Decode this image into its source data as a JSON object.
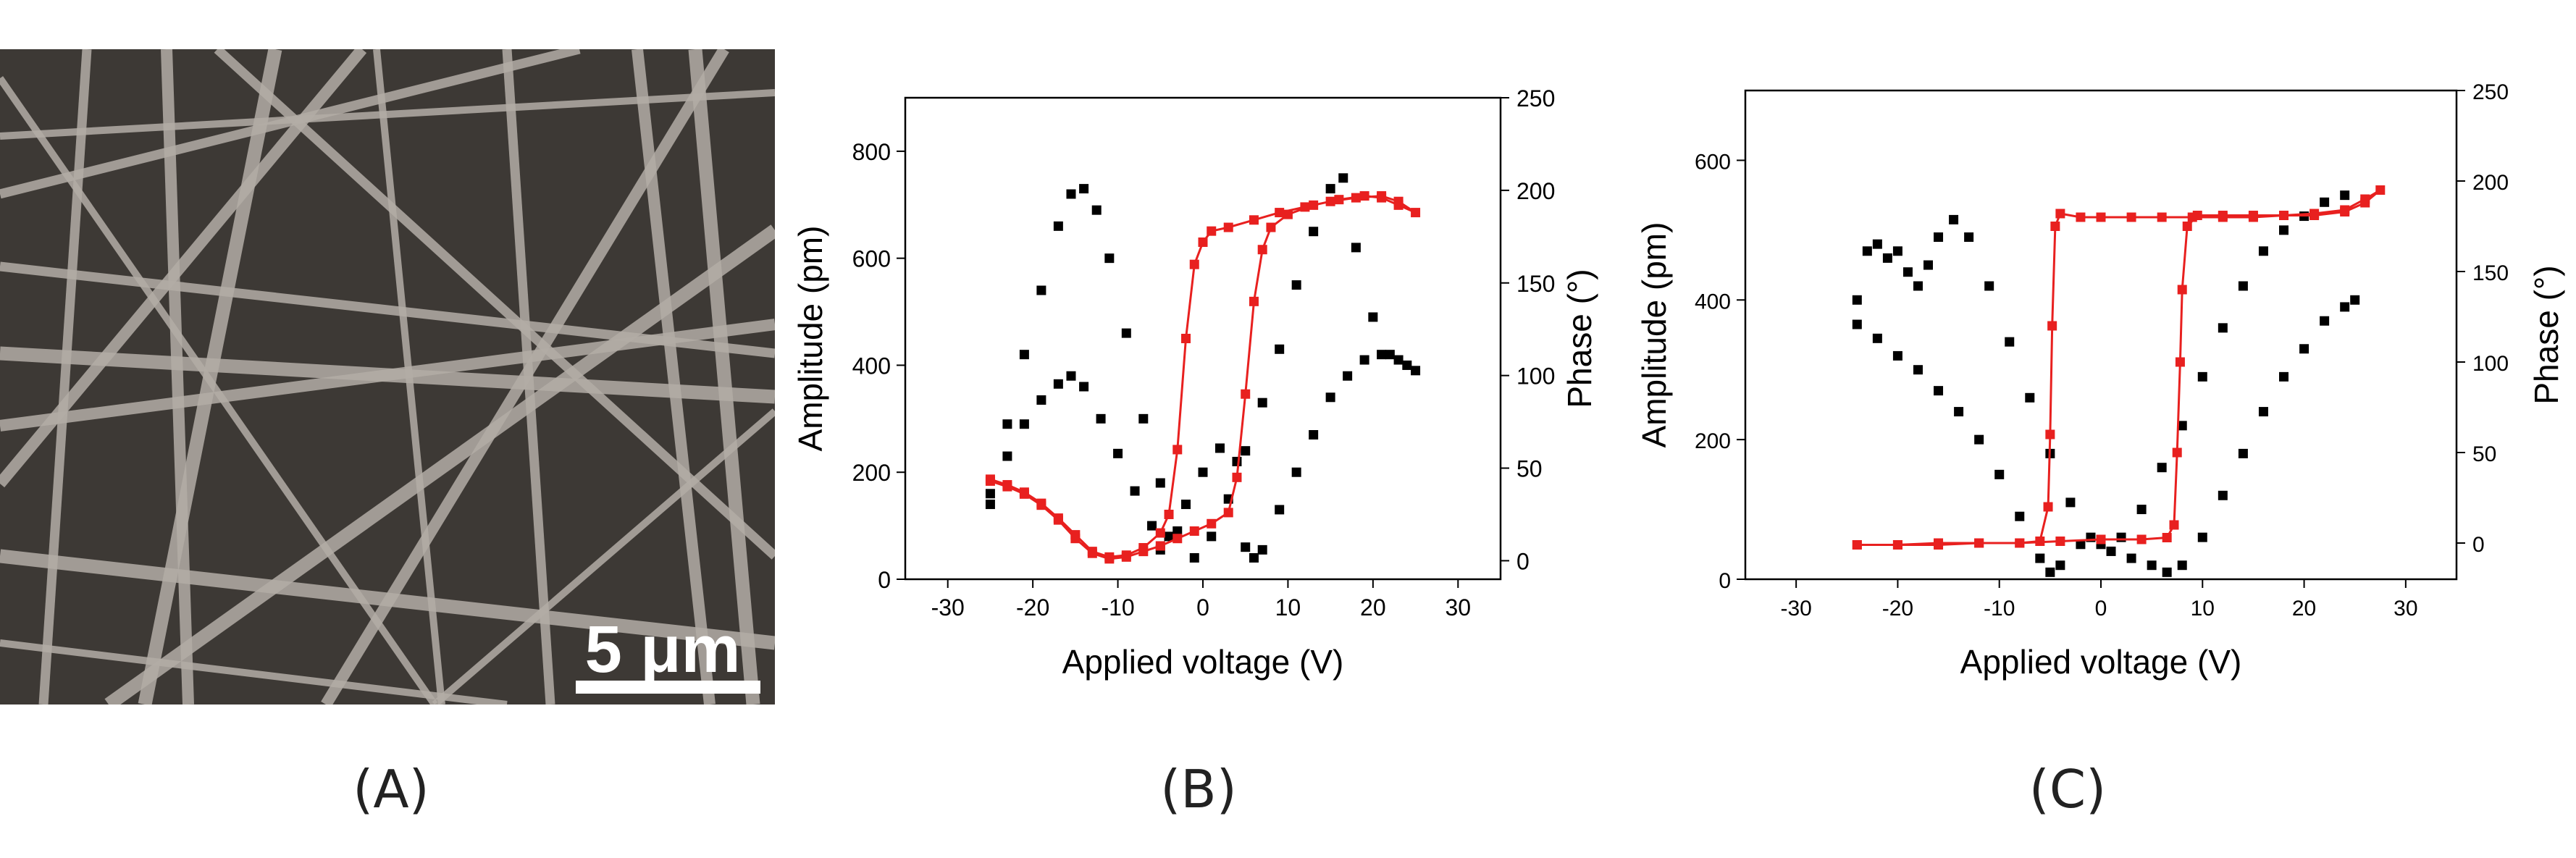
{
  "panel_labels": {
    "a": "(A)",
    "b": "(B)",
    "c": "(C)"
  },
  "sem_image": {
    "scale_bar_label": "5 μm"
  },
  "colors": {
    "amplitude": "#000000",
    "phase": "#e8201f",
    "sem_bg": "#3d3935",
    "fiber": "#aaa59f"
  },
  "chart_data": [
    {
      "type": "scatter",
      "xlabel": "Applied voltage (V)",
      "ylabel": "Amplitude (pm)",
      "y2label": "Phase (°)",
      "xlim": [
        -35,
        35
      ],
      "ylim": [
        0,
        900
      ],
      "y2lim": [
        -10,
        250
      ],
      "xticks": [
        -30,
        -20,
        -10,
        0,
        10,
        20,
        30
      ],
      "yticks": [
        0,
        200,
        400,
        600,
        800
      ],
      "y2ticks": [
        0,
        50,
        100,
        150,
        200,
        250
      ],
      "series": [
        {
          "axis": "left",
          "color": "#000000",
          "marker": "square",
          "points": [
            [
              -25,
              140
            ],
            [
              -23,
              230
            ],
            [
              -21,
              290
            ],
            [
              -19,
              335
            ],
            [
              -17,
              365
            ],
            [
              -15.5,
              380
            ],
            [
              -14,
              360
            ],
            [
              -12,
              300
            ],
            [
              -10,
              235
            ],
            [
              -8,
              165
            ],
            [
              -6,
              100
            ],
            [
              -5,
              55
            ],
            [
              -4,
              80
            ],
            [
              -2,
              140
            ],
            [
              0,
              200
            ],
            [
              2,
              245
            ],
            [
              4,
              220
            ],
            [
              5,
              60
            ],
            [
              6,
              40
            ],
            [
              7,
              55
            ],
            [
              9,
              130
            ],
            [
              11,
              200
            ],
            [
              13,
              270
            ],
            [
              15,
              340
            ],
            [
              17,
              380
            ],
            [
              19,
              410
            ],
            [
              21,
              420
            ],
            [
              23,
              410
            ],
            [
              25,
              390
            ],
            [
              24,
              400
            ],
            [
              22,
              420
            ],
            [
              20,
              490
            ],
            [
              18,
              620
            ],
            [
              16.5,
              750
            ],
            [
              15,
              730
            ],
            [
              13,
              650
            ],
            [
              11,
              550
            ],
            [
              9,
              430
            ],
            [
              7,
              330
            ],
            [
              5,
              240
            ],
            [
              3,
              150
            ],
            [
              1,
              80
            ],
            [
              -1,
              40
            ],
            [
              -3,
              90
            ],
            [
              -5,
              180
            ],
            [
              -7,
              300
            ],
            [
              -9,
              460
            ],
            [
              -11,
              600
            ],
            [
              -12.5,
              690
            ],
            [
              -14,
              730
            ],
            [
              -15.5,
              720
            ],
            [
              -17,
              660
            ],
            [
              -19,
              540
            ],
            [
              -21,
              420
            ],
            [
              -23,
              290
            ],
            [
              -25,
              160
            ]
          ]
        },
        {
          "axis": "right",
          "color": "#e8201f",
          "marker": "square",
          "points": [
            [
              -25,
              43
            ],
            [
              -23,
              40
            ],
            [
              -21,
              36
            ],
            [
              -19,
              30
            ],
            [
              -17,
              22
            ],
            [
              -15,
              12
            ],
            [
              -13,
              4
            ],
            [
              -11,
              1
            ],
            [
              -9,
              2
            ],
            [
              -7,
              5
            ],
            [
              -5,
              8
            ],
            [
              -3,
              12
            ],
            [
              -1,
              16
            ],
            [
              1,
              20
            ],
            [
              3,
              26
            ],
            [
              4,
              45
            ],
            [
              5,
              90
            ],
            [
              6,
              140
            ],
            [
              7,
              168
            ],
            [
              8,
              180
            ],
            [
              10,
              187
            ],
            [
              13,
              192
            ],
            [
              16,
              195
            ],
            [
              19,
              197
            ],
            [
              21,
              196
            ],
            [
              23,
              192
            ],
            [
              25,
              188
            ],
            [
              23,
              194
            ],
            [
              21,
              197
            ],
            [
              18,
              196
            ],
            [
              15,
              194
            ],
            [
              12,
              191
            ],
            [
              9,
              188
            ],
            [
              6,
              184
            ],
            [
              3,
              180
            ],
            [
              1,
              178
            ],
            [
              0,
              172
            ],
            [
              -1,
              160
            ],
            [
              -2,
              120
            ],
            [
              -3,
              60
            ],
            [
              -4,
              25
            ],
            [
              -5,
              15
            ],
            [
              -7,
              7
            ],
            [
              -9,
              3
            ],
            [
              -11,
              2
            ],
            [
              -13,
              5
            ],
            [
              -15,
              14
            ],
            [
              -17,
              23
            ],
            [
              -19,
              31
            ],
            [
              -21,
              37
            ],
            [
              -23,
              41
            ],
            [
              -25,
              44
            ]
          ]
        }
      ]
    },
    {
      "type": "scatter",
      "xlabel": "Applied voltage (V)",
      "ylabel": "Amplitude (pm)",
      "y2label": "Phase (°)",
      "xlim": [
        -35,
        35
      ],
      "ylim": [
        0,
        700
      ],
      "y2lim": [
        -20,
        250
      ],
      "xticks": [
        -30,
        -20,
        -10,
        0,
        10,
        20,
        30
      ],
      "yticks": [
        0,
        200,
        400,
        600
      ],
      "y2ticks": [
        0,
        50,
        100,
        150,
        200,
        250
      ],
      "series": [
        {
          "axis": "left",
          "color": "#000000",
          "marker": "square",
          "points": [
            [
              -24,
              400
            ],
            [
              -23,
              470
            ],
            [
              -22,
              480
            ],
            [
              -21,
              460
            ],
            [
              -20,
              470
            ],
            [
              -19,
              440
            ],
            [
              -18,
              420
            ],
            [
              -17,
              450
            ],
            [
              -16,
              490
            ],
            [
              -14.5,
              515
            ],
            [
              -13,
              490
            ],
            [
              -11,
              420
            ],
            [
              -9,
              340
            ],
            [
              -7,
              260
            ],
            [
              -5,
              180
            ],
            [
              -3,
              110
            ],
            [
              -1,
              60
            ],
            [
              1,
              40
            ],
            [
              3,
              30
            ],
            [
              5,
              20
            ],
            [
              6.5,
              10
            ],
            [
              8,
              20
            ],
            [
              10,
              60
            ],
            [
              12,
              120
            ],
            [
              14,
              180
            ],
            [
              16,
              240
            ],
            [
              18,
              290
            ],
            [
              20,
              330
            ],
            [
              22,
              370
            ],
            [
              24,
              390
            ],
            [
              25,
              400
            ],
            [
              24,
              550
            ],
            [
              22,
              540
            ],
            [
              20,
              520
            ],
            [
              18,
              500
            ],
            [
              16,
              470
            ],
            [
              14,
              420
            ],
            [
              12,
              360
            ],
            [
              10,
              290
            ],
            [
              8,
              220
            ],
            [
              6,
              160
            ],
            [
              4,
              100
            ],
            [
              2,
              60
            ],
            [
              0,
              50
            ],
            [
              -2,
              50
            ],
            [
              -4,
              20
            ],
            [
              -5,
              10
            ],
            [
              -6,
              30
            ],
            [
              -8,
              90
            ],
            [
              -10,
              150
            ],
            [
              -12,
              200
            ],
            [
              -14,
              240
            ],
            [
              -16,
              270
            ],
            [
              -18,
              300
            ],
            [
              -20,
              320
            ],
            [
              -22,
              345
            ],
            [
              -24,
              365
            ]
          ]
        },
        {
          "axis": "right",
          "color": "#e8201f",
          "marker": "square",
          "points": [
            [
              -24,
              -1
            ],
            [
              -20,
              -1
            ],
            [
              -16,
              -1
            ],
            [
              -12,
              0
            ],
            [
              -8,
              0
            ],
            [
              -6,
              1
            ],
            [
              -5.2,
              20
            ],
            [
              -5,
              60
            ],
            [
              -4.8,
              120
            ],
            [
              -4.5,
              175
            ],
            [
              -4,
              182
            ],
            [
              -2,
              180
            ],
            [
              0,
              180
            ],
            [
              3,
              180
            ],
            [
              6,
              180
            ],
            [
              9,
              180
            ],
            [
              12,
              180
            ],
            [
              15,
              180
            ],
            [
              18,
              181
            ],
            [
              21,
              181
            ],
            [
              24,
              183
            ],
            [
              26,
              188
            ],
            [
              27.5,
              195
            ],
            [
              26,
              190
            ],
            [
              24,
              184
            ],
            [
              21,
              182
            ],
            [
              18,
              181
            ],
            [
              15,
              181
            ],
            [
              12,
              181
            ],
            [
              9.5,
              181
            ],
            [
              8.5,
              175
            ],
            [
              8,
              140
            ],
            [
              7.8,
              100
            ],
            [
              7.5,
              50
            ],
            [
              7.2,
              10
            ],
            [
              6.5,
              3
            ],
            [
              4,
              2
            ],
            [
              0,
              2
            ],
            [
              -4,
              1
            ],
            [
              -8,
              0
            ],
            [
              -12,
              0
            ],
            [
              -16,
              0
            ],
            [
              -20,
              -1
            ],
            [
              -24,
              -1
            ]
          ]
        }
      ]
    }
  ]
}
